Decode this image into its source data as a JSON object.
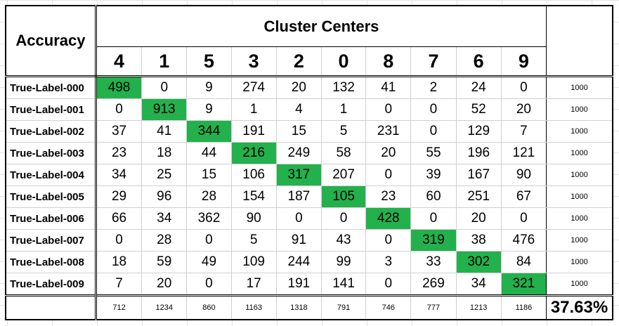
{
  "table": {
    "corner_label": "Accuracy",
    "header_title": "Cluster Centers",
    "cluster_ids": [
      "4",
      "1",
      "5",
      "3",
      "2",
      "0",
      "8",
      "7",
      "6",
      "9"
    ],
    "rows": [
      {
        "label": "True-Label-000",
        "values": [
          "498",
          "0",
          "9",
          "274",
          "20",
          "132",
          "41",
          "2",
          "24",
          "0"
        ],
        "total": "1000"
      },
      {
        "label": "True-Label-001",
        "values": [
          "0",
          "913",
          "9",
          "1",
          "4",
          "1",
          "0",
          "0",
          "52",
          "20"
        ],
        "total": "1000"
      },
      {
        "label": "True-Label-002",
        "values": [
          "37",
          "41",
          "344",
          "191",
          "15",
          "5",
          "231",
          "0",
          "129",
          "7"
        ],
        "total": "1000"
      },
      {
        "label": "True-Label-003",
        "values": [
          "23",
          "18",
          "44",
          "216",
          "249",
          "58",
          "20",
          "55",
          "196",
          "121"
        ],
        "total": "1000"
      },
      {
        "label": "True-Label-004",
        "values": [
          "34",
          "25",
          "15",
          "106",
          "317",
          "207",
          "0",
          "39",
          "167",
          "90"
        ],
        "total": "1000"
      },
      {
        "label": "True-Label-005",
        "values": [
          "29",
          "96",
          "28",
          "154",
          "187",
          "105",
          "23",
          "60",
          "251",
          "67"
        ],
        "total": "1000"
      },
      {
        "label": "True-Label-006",
        "values": [
          "66",
          "34",
          "362",
          "90",
          "0",
          "0",
          "428",
          "0",
          "20",
          "0"
        ],
        "total": "1000"
      },
      {
        "label": "True-Label-007",
        "values": [
          "0",
          "28",
          "0",
          "5",
          "91",
          "43",
          "0",
          "319",
          "38",
          "476"
        ],
        "total": "1000"
      },
      {
        "label": "True-Label-008",
        "values": [
          "18",
          "59",
          "49",
          "109",
          "244",
          "99",
          "3",
          "33",
          "302",
          "84"
        ],
        "total": "1000"
      },
      {
        "label": "True-Label-009",
        "values": [
          "7",
          "20",
          "0",
          "17",
          "191",
          "141",
          "0",
          "269",
          "34",
          "321"
        ],
        "total": "1000"
      }
    ],
    "column_totals": [
      "712",
      "1234",
      "860",
      "1163",
      "1318",
      "791",
      "746",
      "777",
      "1213",
      "1186"
    ],
    "accuracy": "37.63%"
  },
  "colors": {
    "diagonal_highlight": "#22b14c",
    "border": "#000000",
    "gridline": "#d0d0d0"
  }
}
